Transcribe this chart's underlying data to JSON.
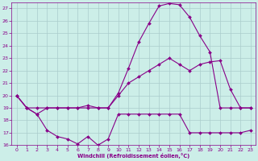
{
  "xlabel": "Windchill (Refroidissement éolien,°C)",
  "bg_color": "#cceee8",
  "grid_color": "#aacccc",
  "line_color": "#880088",
  "x_ticks": [
    0,
    1,
    2,
    3,
    4,
    5,
    6,
    7,
    8,
    9,
    10,
    11,
    12,
    13,
    14,
    15,
    16,
    17,
    18,
    19,
    20,
    21,
    22,
    23
  ],
  "ylim": [
    16,
    27.5
  ],
  "xlim": [
    -0.5,
    23.5
  ],
  "yticks": [
    16,
    17,
    18,
    19,
    20,
    21,
    22,
    23,
    24,
    25,
    26,
    27
  ],
  "series1_x": [
    0,
    1,
    2,
    3,
    4,
    5,
    6,
    7,
    8,
    9,
    10,
    11,
    12,
    13,
    14,
    15,
    16,
    17,
    18,
    19,
    20,
    21,
    22,
    23
  ],
  "series1_y": [
    20.0,
    19.0,
    18.5,
    17.2,
    16.7,
    16.5,
    16.1,
    16.7,
    16.0,
    16.5,
    18.5,
    18.5,
    18.5,
    18.5,
    18.5,
    18.5,
    18.5,
    17.0,
    17.0,
    17.0,
    17.0,
    17.0,
    17.0,
    17.2
  ],
  "series2_x": [
    0,
    1,
    2,
    3,
    4,
    5,
    6,
    7,
    8,
    9,
    10,
    11,
    12,
    13,
    14,
    15,
    16,
    17,
    18,
    19,
    20,
    21,
    22,
    23
  ],
  "series2_y": [
    20.0,
    19.0,
    19.0,
    19.0,
    19.0,
    19.0,
    19.0,
    19.0,
    19.0,
    19.0,
    20.0,
    21.0,
    21.5,
    22.0,
    22.5,
    23.0,
    22.5,
    22.0,
    22.5,
    22.7,
    22.8,
    20.5,
    19.0,
    19.0
  ],
  "series3_x": [
    0,
    1,
    2,
    3,
    4,
    5,
    6,
    7,
    8,
    9,
    10,
    11,
    12,
    13,
    14,
    15,
    16,
    17,
    18,
    19,
    20,
    21,
    22,
    23
  ],
  "series3_y": [
    20.0,
    19.0,
    18.5,
    19.0,
    19.0,
    19.0,
    19.0,
    19.2,
    19.0,
    19.0,
    20.2,
    22.2,
    24.3,
    25.8,
    27.2,
    27.4,
    27.3,
    26.3,
    24.8,
    23.5,
    19.0,
    19.0,
    19.0,
    19.0
  ]
}
